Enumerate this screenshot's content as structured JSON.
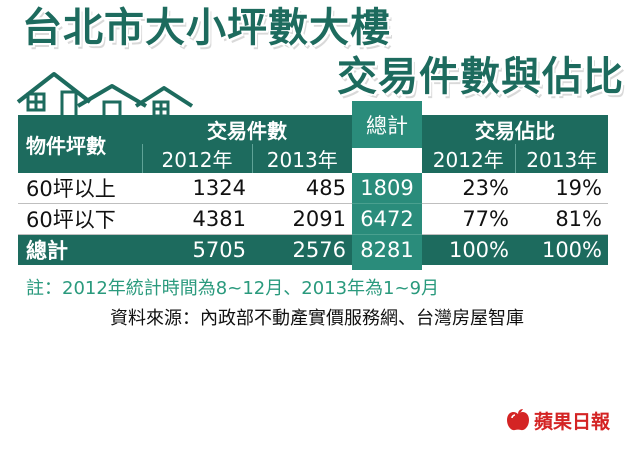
{
  "title": {
    "line1": "台北市大小坪數大樓",
    "line2": "交易件數與佔比"
  },
  "colors": {
    "primary": "#1d6b5e",
    "sum_column": "#2a8c7b",
    "note_text": "#2a9a7d",
    "brand_red": "#d42424"
  },
  "icons": [
    "house-icon",
    "apple-logo-icon"
  ],
  "table": {
    "header": {
      "category": "物件坪數",
      "group_count": "交易件數",
      "group_share": "交易佔比",
      "total": "總計",
      "years": [
        "2012年",
        "2013年"
      ]
    },
    "rows": [
      {
        "label": "60坪以上",
        "count_2012": "1324",
        "count_2013": "485",
        "total": "1809",
        "share_2012": "23%",
        "share_2013": "19%"
      },
      {
        "label": "60坪以下",
        "count_2012": "4381",
        "count_2013": "2091",
        "total": "6472",
        "share_2012": "77%",
        "share_2013": "81%"
      }
    ],
    "total_row": {
      "label": "總計",
      "count_2012": "5705",
      "count_2013": "2576",
      "total": "8281",
      "share_2012": "100%",
      "share_2013": "100%"
    }
  },
  "chart_data": {
    "type": "table",
    "title": "台北市大小坪數大樓 交易件數與佔比",
    "columns": [
      "物件坪數",
      "交易件數 2012年",
      "交易件數 2013年",
      "總計",
      "交易佔比 2012年",
      "交易佔比 2013年"
    ],
    "rows": [
      [
        "60坪以上",
        1324,
        485,
        1809,
        "23%",
        "19%"
      ],
      [
        "60坪以下",
        4381,
        2091,
        6472,
        "77%",
        "81%"
      ],
      [
        "總計",
        5705,
        2576,
        8281,
        "100%",
        "100%"
      ]
    ]
  },
  "note": "註：2012年統計時間為8~12月、2013年為1~9月",
  "source": "資料來源：內政部不動產實價服務網、台灣房屋智庫",
  "logo_text": "蘋果日報"
}
